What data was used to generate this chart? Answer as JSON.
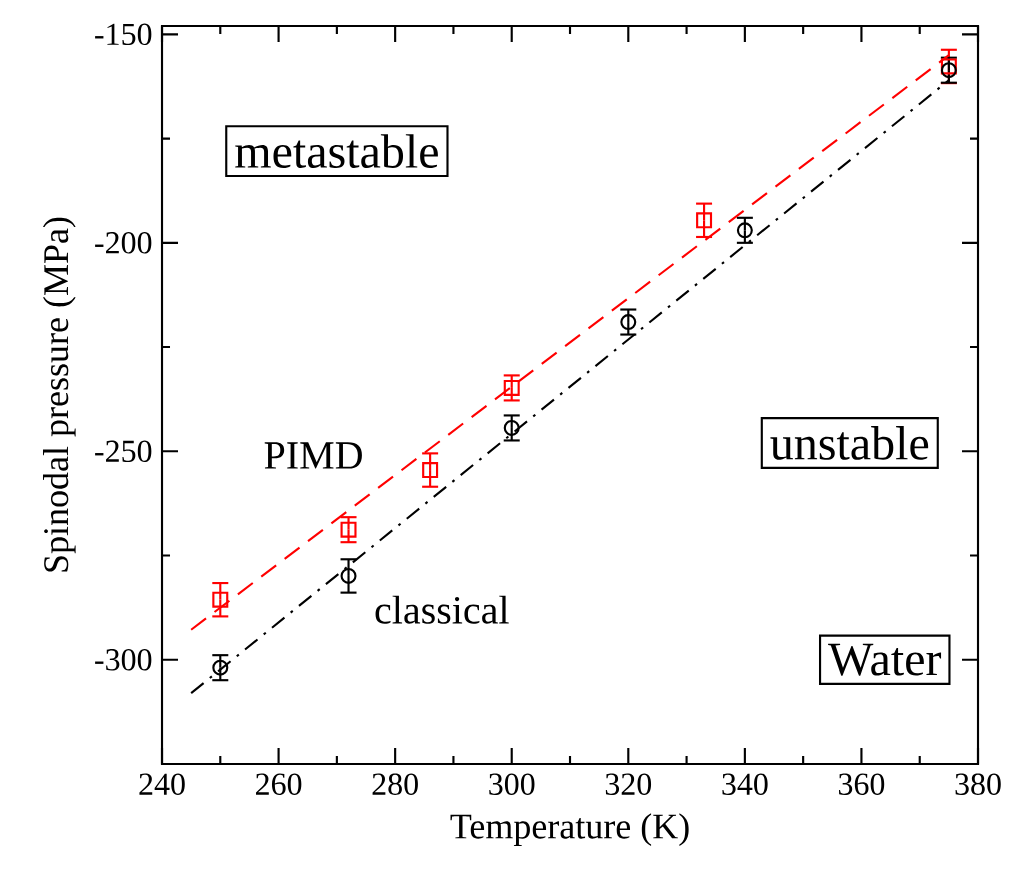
{
  "chart_data": {
    "type": "scatter",
    "xlabel": "Temperature (K)",
    "ylabel": "Spinodal pressure (MPa)",
    "xlim": [
      240,
      380
    ],
    "ylim": [
      -325,
      -148
    ],
    "xticks": [
      240,
      260,
      280,
      300,
      320,
      340,
      360,
      380
    ],
    "yticks": [
      -300,
      -250,
      -200,
      -150
    ],
    "annotations": [
      "metastable",
      "unstable",
      "Water",
      "PIMD",
      "classical"
    ],
    "series": [
      {
        "color": "#ff0000",
        "marker": "square",
        "x": [
          250,
          272,
          286,
          300,
          333,
          375
        ],
        "values": [
          -285.6,
          -268.8,
          -254.5,
          -234.8,
          -194.6,
          -157.7
        ],
        "errors": [
          4,
          3,
          4,
          3,
          4,
          4
        ]
      },
      {
        "color": "#000000",
        "marker": "circle",
        "x": [
          250,
          272,
          300,
          320,
          340,
          375
        ],
        "values": [
          -301.9,
          -279.9,
          -244.4,
          -219.0,
          -197.0,
          -158.6
        ],
        "errors": [
          3,
          4,
          3,
          3,
          3,
          3
        ]
      },
      {
        "type": "line",
        "color": "#ff0000",
        "line_style": "dashed",
        "marker": "none",
        "x": [
          245,
          375
        ],
        "values": [
          -292.8,
          -155
        ]
      },
      {
        "type": "line",
        "color": "#000000",
        "line_style": "dashdot",
        "marker": "none",
        "x": [
          245,
          375
        ],
        "values": [
          -308,
          -161
        ]
      }
    ]
  }
}
